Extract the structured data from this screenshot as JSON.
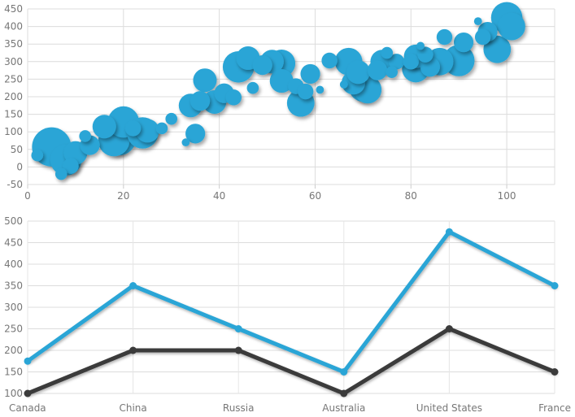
{
  "chart_data": [
    {
      "type": "scatter",
      "variant": "bubble",
      "xlim": [
        0,
        110
      ],
      "ylim": [
        -50,
        450
      ],
      "x_ticks": [
        0,
        20,
        40,
        60,
        80,
        100
      ],
      "y_ticks": [
        -50,
        0,
        50,
        100,
        150,
        200,
        250,
        300,
        350,
        400,
        450
      ],
      "grid": true,
      "color": "#2aa5d6",
      "points": [
        {
          "x": 2,
          "y": 33,
          "r": 2
        },
        {
          "x": 5,
          "y": 57,
          "r": 9
        },
        {
          "x": 7,
          "y": -20,
          "r": 2
        },
        {
          "x": 8,
          "y": 20,
          "r": 7
        },
        {
          "x": 9,
          "y": 3,
          "r": 3
        },
        {
          "x": 10,
          "y": 40,
          "r": 5
        },
        {
          "x": 12,
          "y": 88,
          "r": 2
        },
        {
          "x": 13,
          "y": 62,
          "r": 4
        },
        {
          "x": 16,
          "y": 115,
          "r": 5
        },
        {
          "x": 18,
          "y": 75,
          "r": 7
        },
        {
          "x": 19,
          "y": 83,
          "r": 8
        },
        {
          "x": 20,
          "y": 128,
          "r": 7
        },
        {
          "x": 22,
          "y": 110,
          "r": 3
        },
        {
          "x": 24,
          "y": 97,
          "r": 7
        },
        {
          "x": 25,
          "y": 103,
          "r": 5
        },
        {
          "x": 28,
          "y": 110,
          "r": 2
        },
        {
          "x": 30,
          "y": 137,
          "r": 2
        },
        {
          "x": 33,
          "y": 70,
          "r": 1
        },
        {
          "x": 34,
          "y": 175,
          "r": 5
        },
        {
          "x": 35,
          "y": 95,
          "r": 4
        },
        {
          "x": 36,
          "y": 188,
          "r": 4
        },
        {
          "x": 37,
          "y": 247,
          "r": 5
        },
        {
          "x": 39,
          "y": 185,
          "r": 5
        },
        {
          "x": 41,
          "y": 210,
          "r": 4
        },
        {
          "x": 43,
          "y": 198,
          "r": 3
        },
        {
          "x": 44,
          "y": 285,
          "r": 7
        },
        {
          "x": 46,
          "y": 310,
          "r": 5
        },
        {
          "x": 47,
          "y": 225,
          "r": 2
        },
        {
          "x": 49,
          "y": 290,
          "r": 4
        },
        {
          "x": 51,
          "y": 300,
          "r": 5
        },
        {
          "x": 53,
          "y": 295,
          "r": 6
        },
        {
          "x": 53,
          "y": 245,
          "r": 5
        },
        {
          "x": 56,
          "y": 230,
          "r": 3
        },
        {
          "x": 57,
          "y": 182,
          "r": 6
        },
        {
          "x": 58,
          "y": 215,
          "r": 3
        },
        {
          "x": 59,
          "y": 265,
          "r": 4
        },
        {
          "x": 61,
          "y": 220,
          "r": 1
        },
        {
          "x": 63,
          "y": 303,
          "r": 3
        },
        {
          "x": 66,
          "y": 235,
          "r": 1
        },
        {
          "x": 67,
          "y": 300,
          "r": 6
        },
        {
          "x": 68,
          "y": 240,
          "r": 5
        },
        {
          "x": 69,
          "y": 270,
          "r": 5
        },
        {
          "x": 70,
          "y": 225,
          "r": 6
        },
        {
          "x": 71,
          "y": 220,
          "r": 6
        },
        {
          "x": 73,
          "y": 275,
          "r": 4
        },
        {
          "x": 74,
          "y": 300,
          "r": 5
        },
        {
          "x": 75,
          "y": 325,
          "r": 2
        },
        {
          "x": 76,
          "y": 270,
          "r": 2
        },
        {
          "x": 77,
          "y": 300,
          "r": 3
        },
        {
          "x": 80,
          "y": 300,
          "r": 3
        },
        {
          "x": 81,
          "y": 280,
          "r": 6
        },
        {
          "x": 81,
          "y": 315,
          "r": 5
        },
        {
          "x": 82,
          "y": 345,
          "r": 1
        },
        {
          "x": 83,
          "y": 320,
          "r": 3
        },
        {
          "x": 84,
          "y": 285,
          "r": 4
        },
        {
          "x": 86,
          "y": 300,
          "r": 6
        },
        {
          "x": 87,
          "y": 370,
          "r": 3
        },
        {
          "x": 90,
          "y": 303,
          "r": 7
        },
        {
          "x": 91,
          "y": 355,
          "r": 4
        },
        {
          "x": 94,
          "y": 415,
          "r": 1
        },
        {
          "x": 95,
          "y": 370,
          "r": 3
        },
        {
          "x": 96,
          "y": 385,
          "r": 4
        },
        {
          "x": 98,
          "y": 335,
          "r": 6
        },
        {
          "x": 100,
          "y": 425,
          "r": 7
        },
        {
          "x": 101,
          "y": 400,
          "r": 6
        }
      ]
    },
    {
      "type": "line",
      "categories": [
        "Canada",
        "China",
        "Russia",
        "Australia",
        "United States",
        "France"
      ],
      "ylim": [
        100,
        500
      ],
      "y_ticks": [
        100,
        150,
        200,
        250,
        300,
        350,
        400,
        450,
        500
      ],
      "grid": true,
      "series": [
        {
          "color": "#2aa5d6",
          "values": [
            175,
            350,
            250,
            150,
            475,
            350
          ]
        },
        {
          "color": "#3b3b3b",
          "values": [
            100,
            200,
            200,
            100,
            250,
            150
          ]
        }
      ]
    }
  ]
}
